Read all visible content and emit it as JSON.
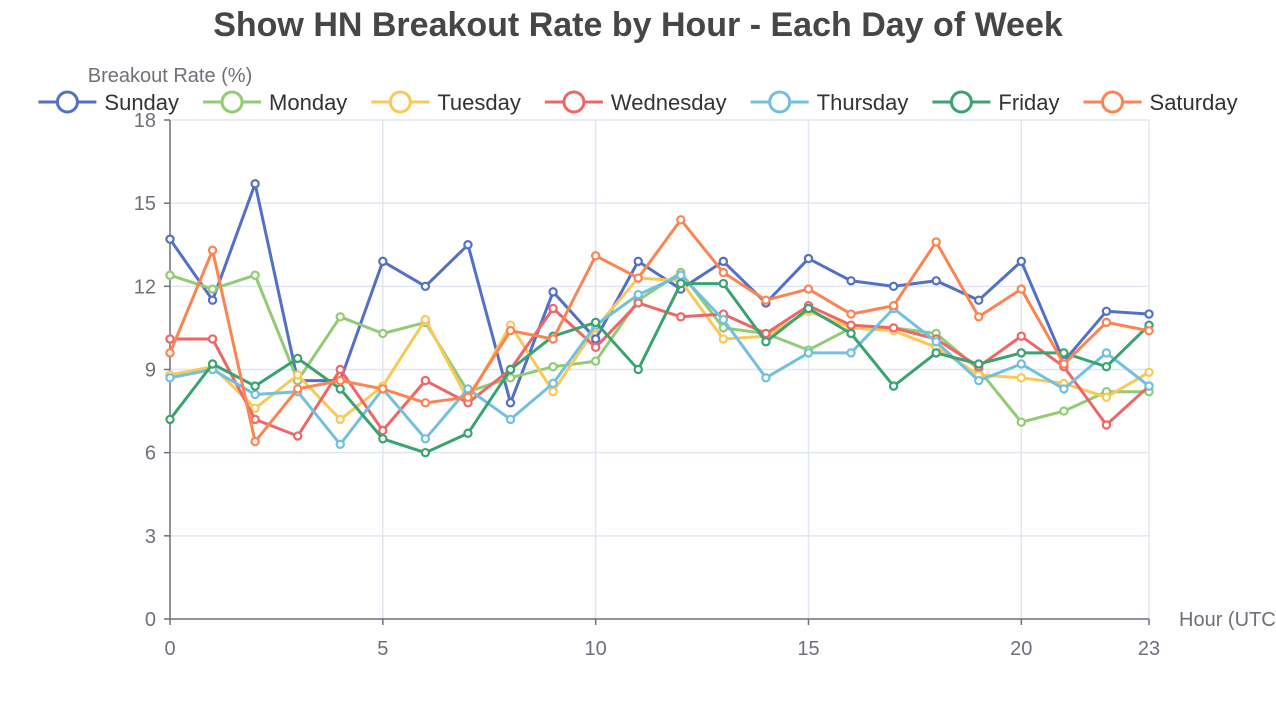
{
  "chart_data": {
    "type": "line",
    "title": "Show HN Breakout Rate by Hour - Each Day of Week",
    "xlabel": "Hour (UTC)",
    "ylabel": "Breakout Rate (%)",
    "xlim": [
      0,
      23
    ],
    "ylim": [
      0,
      18
    ],
    "x_ticks": [
      0,
      5,
      10,
      15,
      20,
      23
    ],
    "y_ticks": [
      0,
      3,
      6,
      9,
      12,
      15,
      18
    ],
    "grid": true,
    "legend_position": "top",
    "x": [
      0,
      1,
      2,
      3,
      4,
      5,
      6,
      7,
      8,
      9,
      10,
      11,
      12,
      13,
      14,
      15,
      16,
      17,
      18,
      19,
      20,
      21,
      22,
      23
    ],
    "series": [
      {
        "name": "Sunday",
        "color": "#5470c6",
        "values": [
          13.7,
          11.5,
          15.7,
          8.6,
          8.6,
          12.9,
          12.0,
          13.5,
          7.8,
          11.8,
          10.1,
          12.9,
          11.9,
          12.9,
          11.4,
          13.0,
          12.2,
          12.0,
          12.2,
          11.5,
          12.9,
          9.3,
          11.1,
          11.0
        ]
      },
      {
        "name": "Monday",
        "color": "#91cc75",
        "values": [
          12.4,
          11.9,
          12.4,
          8.6,
          10.9,
          10.3,
          10.7,
          8.2,
          8.7,
          9.1,
          9.3,
          11.5,
          12.5,
          10.5,
          10.3,
          9.7,
          10.5,
          10.5,
          10.3,
          9.0,
          7.1,
          7.5,
          8.2,
          8.2
        ]
      },
      {
        "name": "Tuesday",
        "color": "#fac858",
        "values": [
          8.8,
          9.1,
          7.6,
          8.8,
          7.2,
          8.4,
          10.8,
          7.9,
          10.6,
          8.2,
          10.5,
          12.3,
          12.2,
          10.1,
          10.2,
          11.1,
          10.5,
          10.4,
          9.8,
          8.8,
          8.7,
          8.5,
          8.0,
          8.9
        ]
      },
      {
        "name": "Wednesday",
        "color": "#ee6666",
        "values": [
          10.1,
          10.1,
          7.2,
          6.6,
          9.0,
          6.8,
          8.6,
          7.8,
          9.0,
          11.2,
          9.8,
          11.4,
          10.9,
          11.0,
          10.3,
          11.3,
          10.6,
          10.5,
          10.1,
          9.1,
          10.2,
          9.1,
          7.0,
          8.4
        ]
      },
      {
        "name": "Thursday",
        "color": "#73c0de",
        "values": [
          8.7,
          9.0,
          8.1,
          8.2,
          6.3,
          8.3,
          6.5,
          8.3,
          7.2,
          8.5,
          10.6,
          11.7,
          12.4,
          10.8,
          8.7,
          9.6,
          9.6,
          11.2,
          10.0,
          8.6,
          9.2,
          8.3,
          9.6,
          8.4
        ]
      },
      {
        "name": "Friday",
        "color": "#3ba272",
        "values": [
          7.2,
          9.2,
          8.4,
          9.4,
          8.3,
          6.5,
          6.0,
          6.7,
          9.0,
          10.2,
          10.7,
          9.0,
          12.1,
          12.1,
          10.0,
          11.2,
          10.3,
          8.4,
          9.6,
          9.2,
          9.6,
          9.6,
          9.1,
          10.6
        ]
      },
      {
        "name": "Saturday",
        "color": "#fc8452",
        "values": [
          9.6,
          13.3,
          6.4,
          8.3,
          8.6,
          8.3,
          7.8,
          8.0,
          10.4,
          10.1,
          13.1,
          12.3,
          14.4,
          12.5,
          11.5,
          11.9,
          11.0,
          11.3,
          13.6,
          10.9,
          11.9,
          9.2,
          10.7,
          10.4
        ]
      }
    ]
  }
}
